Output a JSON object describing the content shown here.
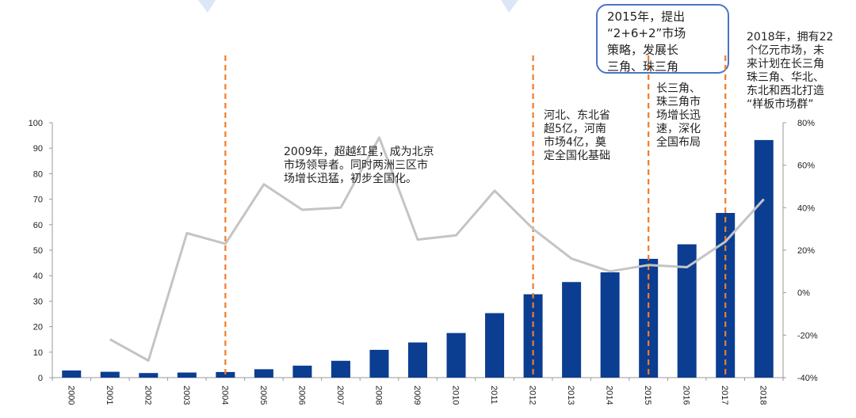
{
  "chart_data": {
    "type": "bar",
    "categories": [
      "2000",
      "2001",
      "2002",
      "2003",
      "2004",
      "2005",
      "2006",
      "2007",
      "2008",
      "2009",
      "2010",
      "2011",
      "2012",
      "2013",
      "2014",
      "2015",
      "2016",
      "2017",
      "2018"
    ],
    "series": [
      {
        "type": "bar",
        "axis": "left",
        "color": "#0b3d91",
        "values": [
          2.8,
          2.3,
          1.8,
          2.0,
          2.2,
          3.3,
          4.7,
          6.6,
          10.9,
          13.8,
          17.5,
          25.3,
          32.7,
          37.5,
          41.3,
          46.6,
          52.3,
          64.6,
          93.2
        ]
      },
      {
        "type": "line",
        "axis": "right",
        "color": "#c4c4c4",
        "values": [
          null,
          -22,
          -32,
          28,
          23,
          51,
          39,
          40,
          73,
          25,
          27,
          48,
          30,
          16,
          10,
          13,
          12,
          24,
          44
        ]
      }
    ],
    "yaxis_left": {
      "min": 0,
      "max": 100,
      "step": 10,
      "ticks": [
        "0",
        "10",
        "20",
        "30",
        "40",
        "50",
        "60",
        "70",
        "80",
        "90",
        "100"
      ]
    },
    "yaxis_right": {
      "min": -40,
      "max": 80,
      "step": 20,
      "ticks": [
        "-40%",
        "-20%",
        "0%",
        "20%",
        "40%",
        "60%",
        "80%"
      ]
    },
    "vlines": [
      {
        "at": "2004",
        "color": "#f07c2a"
      },
      {
        "at": "2012",
        "color": "#f07c2a"
      },
      {
        "at": "2015",
        "color": "#f07c2a"
      },
      {
        "at": "2017",
        "color": "#f07c2a"
      }
    ],
    "annotations": {
      "a2009": [
        "2009年，超越红星，成为北京",
        "市场领导者。同时两洲三区市",
        "场增长迅猛，初步全国化。"
      ],
      "a2012": [
        "河北、东北省",
        "超5亿，河南",
        "市场4亿，奠",
        "定全国化基础"
      ],
      "a2015": [
        "长三角、",
        "珠三角市",
        "场增长迅",
        "速，深化",
        "全国布局"
      ],
      "a2015box": [
        "2015年，提出",
        "“2+6+2”市场",
        "策略，发展长",
        "三角、珠三角"
      ],
      "a2018": [
        "2018年，拥有22",
        "个亿元市场，未",
        "来计划在长三角",
        "珠三角、华北、",
        "东北和西北打造",
        "“样板市场群”"
      ]
    }
  }
}
